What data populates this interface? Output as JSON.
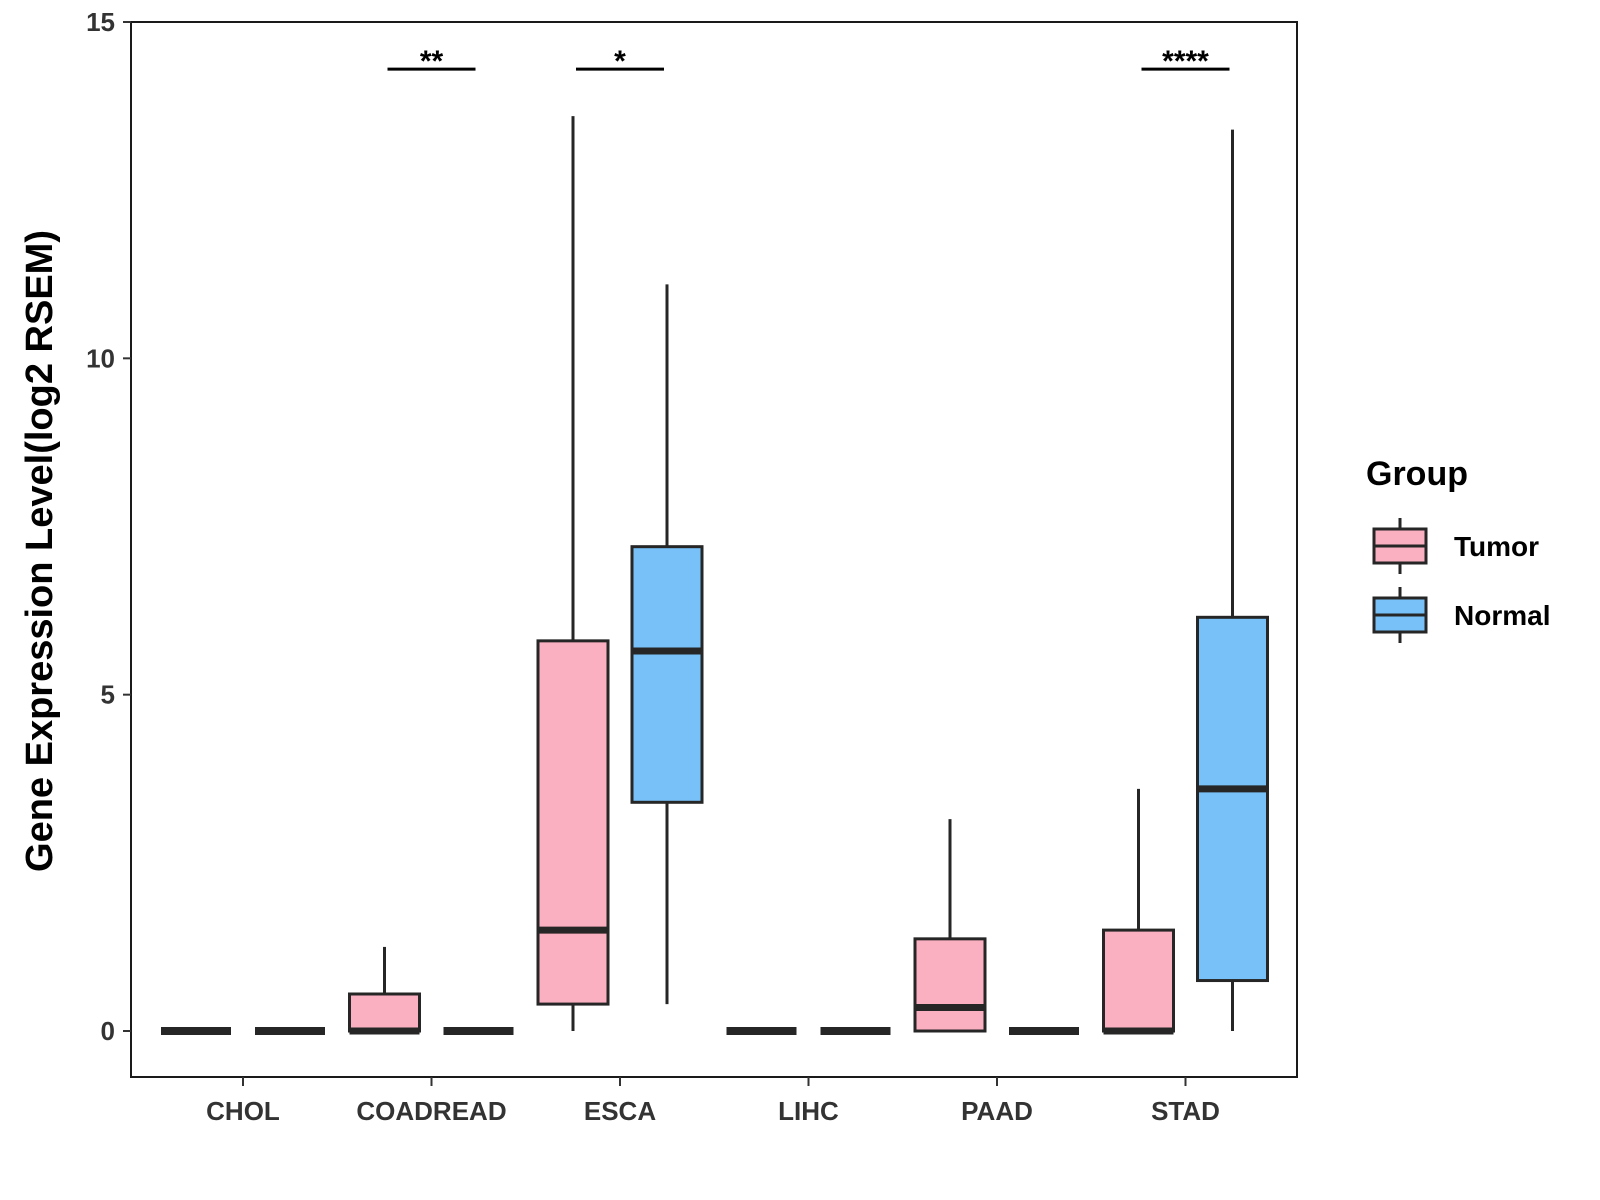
{
  "chart_data": {
    "type": "box",
    "title": "",
    "xlabel": "",
    "ylabel": "Gene Expression Level(log2 RSEM)",
    "ylim": [
      -0.7,
      15
    ],
    "yticks": [
      0,
      5,
      10,
      15
    ],
    "ytick_labels": [
      "0",
      "5",
      "10",
      "15"
    ],
    "categories": [
      "CHOL",
      "COADREAD",
      "ESCA",
      "LIHC",
      "PAAD",
      "STAD"
    ],
    "legend": {
      "title": "Group",
      "position": "right",
      "entries": [
        {
          "name": "Tumor",
          "color": "#FBB0C2"
        },
        {
          "name": "Normal",
          "color": "#78C1F8"
        }
      ]
    },
    "series": [
      {
        "name": "Tumor",
        "color": "#FBB0C2",
        "boxes": [
          {
            "category": "CHOL",
            "whisker_low": 0,
            "q1": 0,
            "median": 0,
            "q3": 0,
            "whisker_high": 0
          },
          {
            "category": "COADREAD",
            "whisker_low": 0,
            "q1": 0,
            "median": 0,
            "q3": 0.55,
            "whisker_high": 1.25
          },
          {
            "category": "ESCA",
            "whisker_low": 0,
            "q1": 0.4,
            "median": 1.5,
            "q3": 5.8,
            "whisker_high": 13.6
          },
          {
            "category": "LIHC",
            "whisker_low": 0,
            "q1": 0,
            "median": 0,
            "q3": 0,
            "whisker_high": 0
          },
          {
            "category": "PAAD",
            "whisker_low": 0,
            "q1": 0,
            "median": 0.35,
            "q3": 1.37,
            "whisker_high": 3.15
          },
          {
            "category": "STAD",
            "whisker_low": 0,
            "q1": 0,
            "median": 0,
            "q3": 1.5,
            "whisker_high": 3.6
          }
        ]
      },
      {
        "name": "Normal",
        "color": "#78C1F8",
        "boxes": [
          {
            "category": "CHOL",
            "whisker_low": 0,
            "q1": 0,
            "median": 0,
            "q3": 0,
            "whisker_high": 0
          },
          {
            "category": "COADREAD",
            "whisker_low": 0,
            "q1": 0,
            "median": 0,
            "q3": 0,
            "whisker_high": 0
          },
          {
            "category": "ESCA",
            "whisker_low": 0.4,
            "q1": 3.4,
            "median": 5.65,
            "q3": 7.2,
            "whisker_high": 11.1
          },
          {
            "category": "LIHC",
            "whisker_low": 0,
            "q1": 0,
            "median": 0,
            "q3": 0,
            "whisker_high": 0
          },
          {
            "category": "PAAD",
            "whisker_low": 0,
            "q1": 0,
            "median": 0,
            "q3": 0,
            "whisker_high": 0
          },
          {
            "category": "STAD",
            "whisker_low": 0,
            "q1": 0.75,
            "median": 3.6,
            "q3": 6.15,
            "whisker_high": 13.4
          }
        ]
      }
    ],
    "significance": [
      {
        "category": "COADREAD",
        "label": "**",
        "y": 14.3
      },
      {
        "category": "ESCA",
        "label": "*",
        "y": 14.3
      },
      {
        "category": "STAD",
        "label": "****",
        "y": 14.3
      }
    ]
  }
}
